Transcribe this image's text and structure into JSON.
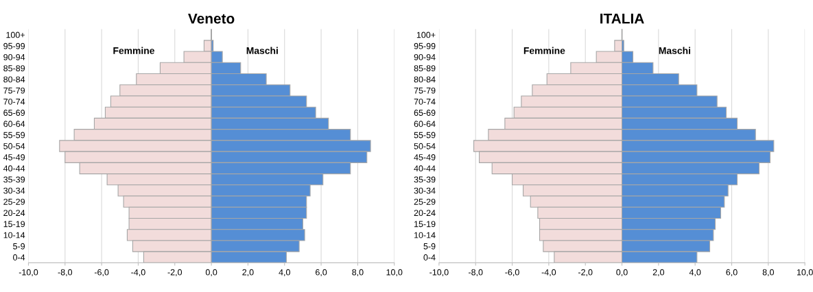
{
  "chart_data": [
    {
      "type": "bar",
      "title": "Veneto",
      "orientation": "horizontal",
      "grid": "x",
      "stacked": true,
      "categories": [
        "100+",
        "95-99",
        "90-94",
        "85-89",
        "80-84",
        "75-79",
        "70-74",
        "65-69",
        "60-64",
        "55-59",
        "50-54",
        "45-49",
        "40-44",
        "35-39",
        "30-34",
        "25-29",
        "20-24",
        "15-19",
        "10-14",
        "5-9",
        "0-4"
      ],
      "series": [
        {
          "name": "Femmine",
          "color": "#f2dcdb",
          "values": [
            null,
            -0.4,
            -1.5,
            -2.8,
            -4.1,
            -5.0,
            -5.5,
            -5.8,
            -6.4,
            -7.5,
            -8.3,
            -8.0,
            -7.2,
            -5.7,
            -5.1,
            -4.8,
            -4.5,
            -4.5,
            -4.6,
            -4.3,
            -3.7
          ]
        },
        {
          "name": "Maschi",
          "color": "#558ed5",
          "values": [
            null,
            0.1,
            0.6,
            1.6,
            3.0,
            4.3,
            5.2,
            5.7,
            6.4,
            7.6,
            8.7,
            8.5,
            7.6,
            6.1,
            5.4,
            5.2,
            5.2,
            5.0,
            5.1,
            4.8,
            4.1
          ]
        }
      ],
      "xlim": [
        -10,
        10
      ],
      "xticks": [
        {
          "value": -10,
          "label": "-10,0"
        },
        {
          "value": -8,
          "label": "-8,0"
        },
        {
          "value": -6,
          "label": "-6,0"
        },
        {
          "value": -4,
          "label": "-4,0"
        },
        {
          "value": -2,
          "label": "-2,0"
        },
        {
          "value": 0,
          "label": "0,0"
        },
        {
          "value": 2,
          "label": "2,0"
        },
        {
          "value": 4,
          "label": "4,0"
        },
        {
          "value": 6,
          "label": "6,0"
        },
        {
          "value": 8,
          "label": "8,0"
        },
        {
          "value": 10,
          "label": "10,0"
        }
      ]
    },
    {
      "type": "bar",
      "title": "ITALIA",
      "orientation": "horizontal",
      "grid": "x",
      "stacked": true,
      "categories": [
        "100+",
        "95-99",
        "90-94",
        "85-89",
        "80-84",
        "75-79",
        "70-74",
        "65-69",
        "60-64",
        "55-59",
        "50-54",
        "45-49",
        "40-44",
        "35-39",
        "30-34",
        "25-29",
        "20-24",
        "15-19",
        "10-14",
        "5-9",
        "0-4"
      ],
      "series": [
        {
          "name": "Femmine",
          "color": "#f2dcdb",
          "values": [
            null,
            -0.4,
            -1.4,
            -2.8,
            -4.1,
            -4.9,
            -5.5,
            -5.9,
            -6.4,
            -7.3,
            -8.1,
            -7.8,
            -7.1,
            -6.0,
            -5.4,
            -5.0,
            -4.6,
            -4.5,
            -4.5,
            -4.3,
            -3.7
          ]
        },
        {
          "name": "Maschi",
          "color": "#558ed5",
          "values": [
            null,
            0.1,
            0.6,
            1.7,
            3.1,
            4.1,
            5.2,
            5.7,
            6.3,
            7.3,
            8.3,
            8.1,
            7.5,
            6.3,
            5.8,
            5.6,
            5.4,
            5.1,
            5.0,
            4.8,
            4.1
          ]
        }
      ],
      "xlim": [
        -10,
        10
      ],
      "xticks": [
        {
          "value": -10,
          "label": "-10,0"
        },
        {
          "value": -8,
          "label": "-8,0"
        },
        {
          "value": -6,
          "label": "-6,0"
        },
        {
          "value": -4,
          "label": "-4,0"
        },
        {
          "value": -2,
          "label": "-2,0"
        },
        {
          "value": 0,
          "label": "0,0"
        },
        {
          "value": 2,
          "label": "2,0"
        },
        {
          "value": 4,
          "label": "4,0"
        },
        {
          "value": 6,
          "label": "6,0"
        },
        {
          "value": 8,
          "label": "8,0"
        },
        {
          "value": 10,
          "label": "10,0"
        }
      ]
    }
  ]
}
